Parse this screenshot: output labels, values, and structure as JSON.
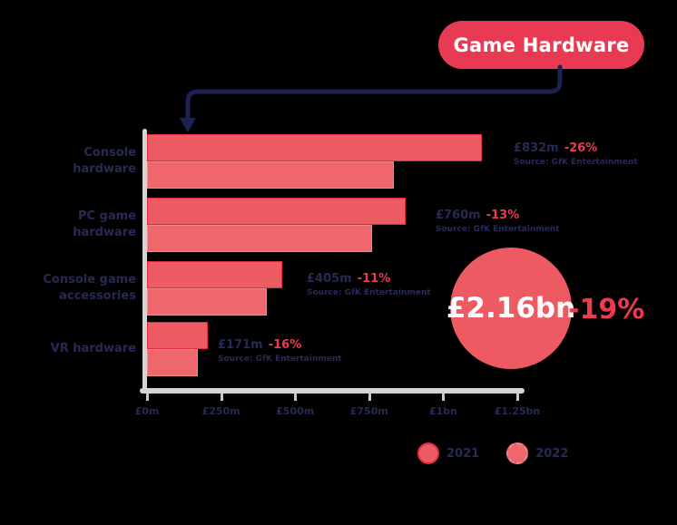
{
  "title": "Game Hardware",
  "colors": {
    "background": "#000000",
    "title_box": "#e93a53",
    "connector_navy": "#1d2150",
    "bar_2021": "#ee5c63",
    "bar_2021_stroke": "#e5293e",
    "bar_2022": "#ef666c",
    "bar_2022_stroke": "#f0898e",
    "navy_text": "#262a55",
    "accent_red_text": "#ee3a4f",
    "total_circle": "#ee5a62",
    "axis_gray": "#d4d4d4"
  },
  "chart_data": {
    "type": "bar",
    "orientation": "horizontal",
    "title": "Game Hardware",
    "unit": "£ millions",
    "grid": false,
    "legend_position": "bottom-right",
    "axis": {
      "min": 0,
      "max": 1250,
      "tick_labels": [
        "£0m",
        "£250m",
        "£500m",
        "£750m",
        "£1bn",
        "£1.25bn"
      ]
    },
    "categories": [
      "Console hardware",
      "PC game hardware",
      "Console game accessories",
      "VR hardware"
    ],
    "series": [
      {
        "name": "2021",
        "values": [
          1130,
          874,
          455,
          204
        ]
      },
      {
        "name": "2022",
        "values": [
          832,
          760,
          405,
          171
        ]
      }
    ],
    "rows": [
      {
        "category_lines": [
          "Console",
          "hardware"
        ],
        "value": "£832m",
        "change": "-26%",
        "source": "Source: GfK Entertainment"
      },
      {
        "category_lines": [
          "PC game",
          "hardware"
        ],
        "value": "£760m",
        "change": "-13%",
        "source": "Source: GfK Entertainment"
      },
      {
        "category_lines": [
          "Console game",
          "accessories"
        ],
        "value": "£405m",
        "change": "-11%",
        "source": "Source: GfK Entertainment"
      },
      {
        "category_lines": [
          "VR hardware"
        ],
        "value": "£171m",
        "change": "-16%",
        "source": "Source: GfK Entertainment"
      }
    ],
    "total": {
      "value": "£2.16bn",
      "change": "-19%"
    },
    "legend": [
      "2021",
      "2022"
    ]
  }
}
